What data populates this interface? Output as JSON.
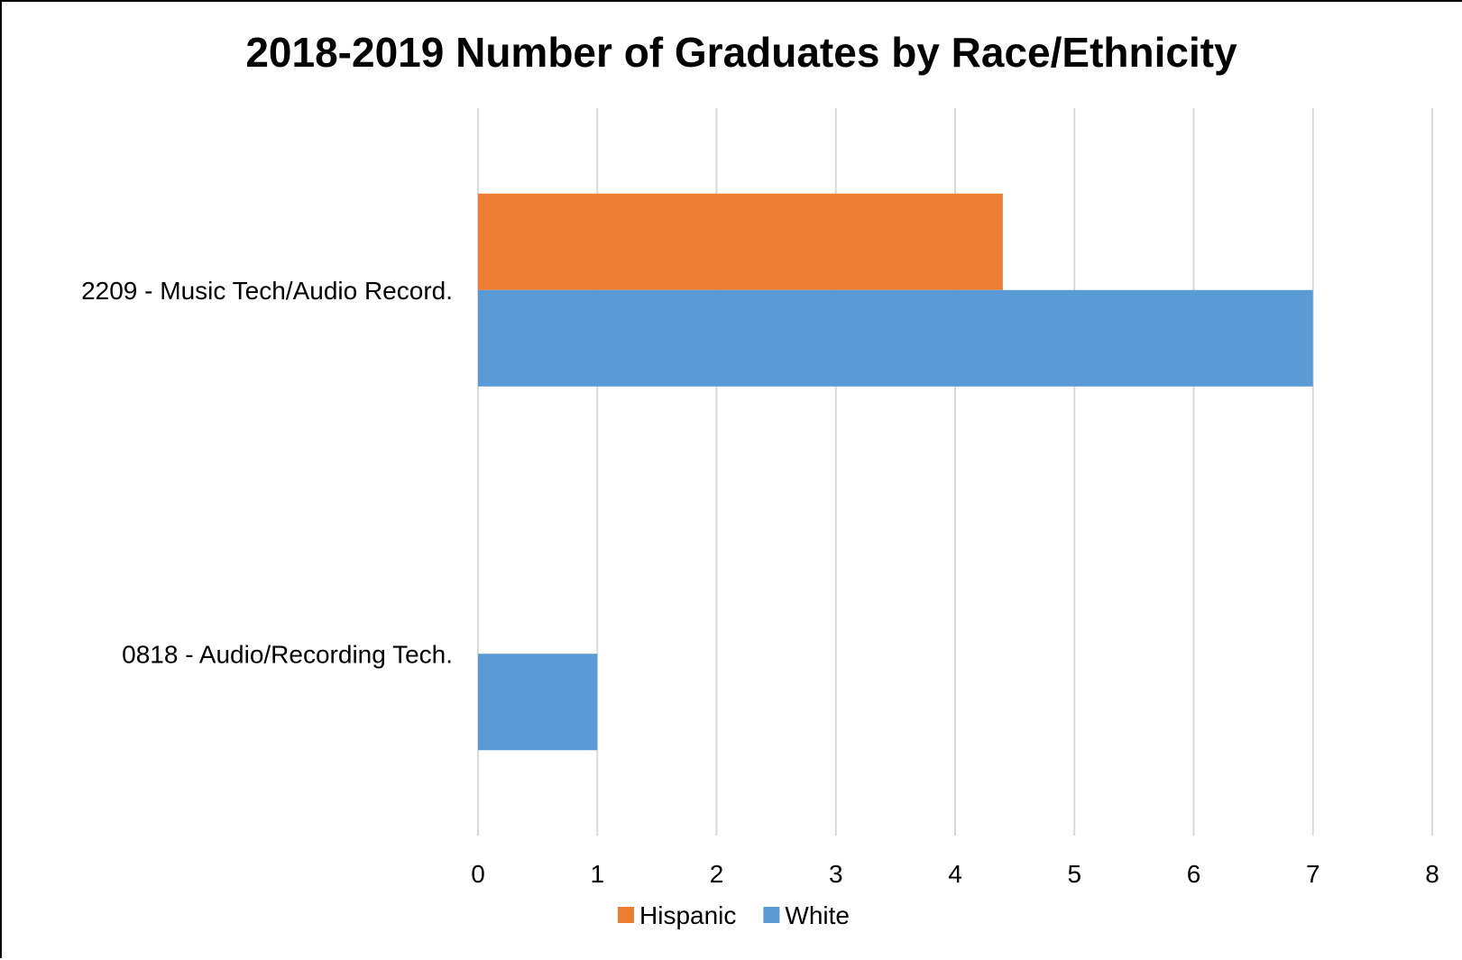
{
  "chart_data": {
    "type": "bar",
    "orientation": "horizontal",
    "title": "2018-2019 Number of Graduates by Race/Ethnicity",
    "xlabel": "",
    "ylabel": "",
    "categories": [
      "2209 - Music Tech/Audio Record.",
      "0818 - Audio/Recording Tech."
    ],
    "series": [
      {
        "name": "Hispanic",
        "color": "#ED7D31",
        "values": [
          4.4,
          0
        ]
      },
      {
        "name": "White",
        "color": "#5B9BD5",
        "values": [
          7,
          1
        ]
      }
    ],
    "xlim": [
      0,
      8
    ],
    "xticks": [
      "0",
      "1",
      "2",
      "3",
      "4",
      "5",
      "6",
      "7",
      "8"
    ],
    "grid": true,
    "legend": "bottom"
  }
}
